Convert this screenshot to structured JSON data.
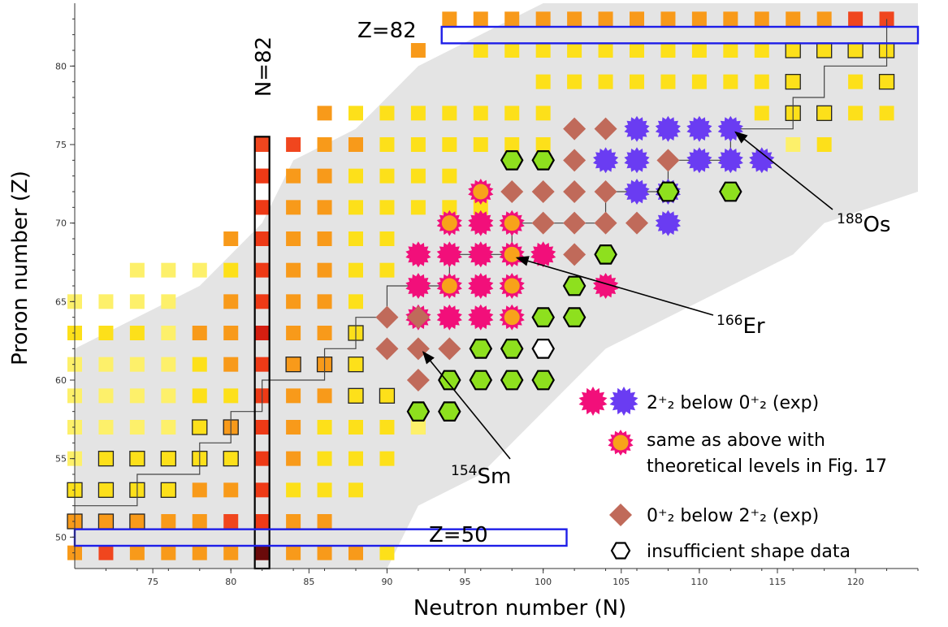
{
  "chart_data": {
    "type": "scatter",
    "title": "",
    "xlabel": "Neutron number (N)",
    "ylabel": "Proron number (Z)",
    "xlim": [
      70,
      124
    ],
    "ylim": [
      48,
      84
    ],
    "xticks": [
      75,
      80,
      85,
      90,
      95,
      100,
      105,
      110,
      115,
      120
    ],
    "yticks": [
      50,
      55,
      60,
      65,
      70,
      75,
      80
    ],
    "magic_labels": {
      "z82": "Z=82",
      "z50": "Z=50",
      "n82": "N=82"
    },
    "annotations": [
      {
        "mass": "154",
        "element": "Sm",
        "N": 92,
        "Z": 62
      },
      {
        "mass": "166",
        "element": "Er",
        "N": 98,
        "Z": 68
      },
      {
        "mass": "188",
        "element": "Os",
        "N": 112,
        "Z": 76
      }
    ],
    "legend": [
      {
        "kind": "exp_gamma",
        "text": "2⁺₂ below 0⁺₂ (exp)"
      },
      {
        "kind": "theory_gamma",
        "text_lines": [
          "same as above with",
          "theoretical levels in Fig. 17"
        ]
      },
      {
        "kind": "beta",
        "text": "0⁺₂ below 2⁺₂ (exp)"
      },
      {
        "kind": "insufficient",
        "text": "insufficient shape data"
      }
    ],
    "series": [
      {
        "name": "2⁺₂ below 0⁺₂ (exp)",
        "marker": "star-pink",
        "points": [
          [
            92,
            68
          ],
          [
            94,
            68
          ],
          [
            96,
            68
          ],
          [
            100,
            68
          ],
          [
            92,
            66
          ],
          [
            96,
            66
          ],
          [
            104,
            66
          ],
          [
            96,
            70
          ],
          [
            94,
            64
          ],
          [
            96,
            64
          ]
        ]
      },
      {
        "name": "2⁺₂ below 0⁺₂ (exp)",
        "marker": "star-purple",
        "points": [
          [
            104,
            74
          ],
          [
            106,
            74
          ],
          [
            110,
            74
          ],
          [
            112,
            74
          ],
          [
            114,
            74
          ],
          [
            106,
            76
          ],
          [
            108,
            76
          ],
          [
            110,
            76
          ],
          [
            112,
            76
          ],
          [
            106,
            72
          ],
          [
            108,
            72
          ],
          [
            108,
            70
          ]
        ]
      },
      {
        "name": "same as above with theoretical levels in Fig. 17",
        "marker": "star-theory",
        "points": [
          [
            96,
            72
          ],
          [
            94,
            70
          ],
          [
            98,
            70
          ],
          [
            98,
            68
          ],
          [
            94,
            66
          ],
          [
            98,
            66
          ],
          [
            92,
            64
          ],
          [
            98,
            64
          ]
        ]
      },
      {
        "name": "0⁺₂ below 2⁺₂ (exp)",
        "marker": "diamond",
        "points": [
          [
            102,
            76
          ],
          [
            104,
            76
          ],
          [
            102,
            74
          ],
          [
            108,
            74
          ],
          [
            98,
            72
          ],
          [
            100,
            72
          ],
          [
            102,
            72
          ],
          [
            104,
            72
          ],
          [
            100,
            70
          ],
          [
            102,
            70
          ],
          [
            104,
            70
          ],
          [
            106,
            70
          ],
          [
            102,
            68
          ],
          [
            90,
            64
          ],
          [
            92,
            64
          ],
          [
            90,
            62
          ],
          [
            92,
            62
          ],
          [
            94,
            62
          ],
          [
            92,
            60
          ]
        ]
      },
      {
        "name": "insufficient shape data",
        "marker": "hex-green",
        "points": [
          [
            98,
            74
          ],
          [
            100,
            74
          ],
          [
            108,
            72
          ],
          [
            112,
            72
          ],
          [
            104,
            68
          ],
          [
            102,
            66
          ],
          [
            100,
            64
          ],
          [
            102,
            64
          ],
          [
            96,
            62
          ],
          [
            98,
            62
          ],
          [
            94,
            60
          ],
          [
            96,
            60
          ],
          [
            98,
            60
          ],
          [
            100,
            60
          ],
          [
            92,
            58
          ],
          [
            94,
            58
          ]
        ]
      },
      {
        "name": "insufficient shape data",
        "marker": "hex-white",
        "points": [
          [
            100,
            62
          ]
        ]
      }
    ],
    "rows": [
      {
        "Z": 83,
        "cells": "R-22,120,122 O-94,96,98,100,102,104,106,108,110,112,114,116,118"
      },
      {
        "Z": 81,
        "cells": "O-92 Y-96,98,100,102,104,106,108,110,112,114 Yb-116,118,120,122"
      },
      {
        "Z": 79,
        "cells": "Y-100,102,104,106,108,110,112,114,120,122 Yb-116 Yb-122"
      },
      {
        "Z": 77,
        "cells": "O-86 Y-88,90,92,94,96,98,100 Y-114,116,120,122 Yb-116,118"
      },
      {
        "Z": 75,
        "cells": "R-84,82 O-86,88 Y-90,92,94,96,98,100 Yp-116 Y-118"
      },
      {
        "Z": 73,
        "cells": "R-82 O-84,86 Y-88,90,92,94"
      },
      {
        "Z": 71,
        "cells": "R-82 O-84,86 Y-88,90,92,94,96"
      },
      {
        "Z": 69,
        "cells": "R-82 O-80,84,86 Y-88,90"
      },
      {
        "Z": 67,
        "cells": "Yp-74,76,78 Y-80 O-84,86 Y-88,90"
      },
      {
        "Z": 65,
        "cells": "Yp-70,72,74,76 O-80,84,86 Y-88"
      },
      {
        "Z": 63,
        "cells": "Y-70,72,74 Yp-76 O-78,80 R-82 O-84,86 Yb-88"
      },
      {
        "Z": 61,
        "cells": "Yp-70,72,74,76 Y-78 O-80 Ob-84 Ob-86 Yb-88"
      },
      {
        "Z": 59,
        "cells": "Yp-70,72,74,76 Y-78,80 O-82,84,86,88 Yb-88,90"
      },
      {
        "Z": 57,
        "cells": "Yp-70,72,74,76 Yb-78 Ob-80 O-84 Y-86,88,90,92 Yp-92"
      },
      {
        "Z": 55,
        "cells": "Yp-70 Yb-72,74,76,78,80 O-84 Y-86,88,90"
      },
      {
        "Z": 53,
        "cells": "Yb-70,72,74,76 O-78,80 Y-84,86,88"
      },
      {
        "Z": 51,
        "cells": "Ob-70,72,74 O-76,78 R-80 O-84,86"
      },
      {
        "Z": 49,
        "cells": "O-70,74,76,78,80 R-72 O-84,86,88 Y-90"
      }
    ]
  }
}
